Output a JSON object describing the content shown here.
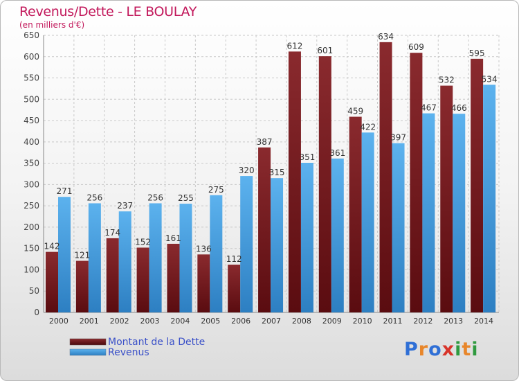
{
  "chart_data": {
    "type": "bar",
    "title": "Revenus/Dette - LE BOULAY",
    "subtitle": "(en milliers d'€)",
    "xlabel": "",
    "ylabel": "",
    "ylim": [
      0,
      650
    ],
    "y_ticks": [
      "0",
      "50",
      "100",
      "150",
      "200",
      "250",
      "300",
      "350",
      "400",
      "450",
      "500",
      "550",
      "600",
      "650"
    ],
    "grid": true,
    "legend_position": "bottom-left",
    "categories": [
      "2000",
      "2001",
      "2002",
      "2003",
      "2004",
      "2005",
      "2006",
      "2007",
      "2008",
      "2009",
      "2010",
      "2011",
      "2012",
      "2013",
      "2014"
    ],
    "series": [
      {
        "name": "Montant de la Dette",
        "color": "#7b1b1f",
        "values": [
          142,
          121,
          174,
          152,
          161,
          136,
          112,
          387,
          612,
          601,
          459,
          634,
          609,
          532,
          595
        ],
        "labels": [
          "142",
          "121",
          "174",
          "152",
          "161",
          "136",
          "112",
          "387",
          "612",
          "601",
          "459",
          "634",
          "609",
          "532",
          "595"
        ]
      },
      {
        "name": "Revenus",
        "color": "#4aa3e6",
        "values": [
          271,
          256,
          237,
          256,
          255,
          275,
          320,
          315,
          351,
          361,
          422,
          397,
          467,
          466,
          534
        ],
        "labels": [
          "271",
          "256",
          "237",
          "256",
          "255",
          "275",
          "320",
          "315",
          "351",
          "361",
          "422",
          "397",
          "467",
          "466",
          "534"
        ]
      }
    ]
  },
  "logo": {
    "text": "Proxiti",
    "letters": [
      "P",
      "r",
      "o",
      "x",
      "i",
      "t",
      "i"
    ],
    "colors": [
      "#2f6fd6",
      "#e8862a",
      "#2f6fd6",
      "#d8342a",
      "#2f9a3f",
      "#e8862a",
      "#2f9a3f"
    ]
  }
}
